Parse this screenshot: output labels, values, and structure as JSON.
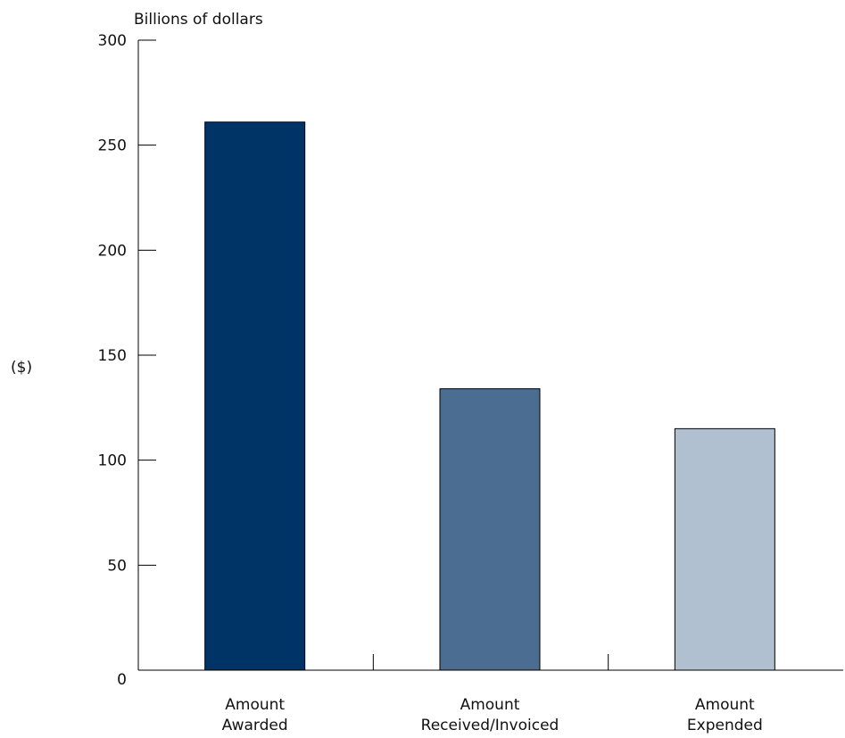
{
  "chart_data": {
    "type": "bar",
    "title": "",
    "unit_label": "Billions of dollars",
    "ylabel": "($)",
    "xlabel": "",
    "ylim": [
      0,
      300
    ],
    "yticks": [
      0,
      50,
      100,
      150,
      200,
      250,
      300
    ],
    "grid": false,
    "categories": [
      [
        "Amount",
        "Awarded"
      ],
      [
        "Amount",
        "Received/Invoiced"
      ],
      [
        "Amount",
        "Expended"
      ]
    ],
    "values": [
      261,
      134,
      115
    ],
    "colors": [
      "#003366",
      "#4a6d91",
      "#b0c0d0"
    ]
  }
}
